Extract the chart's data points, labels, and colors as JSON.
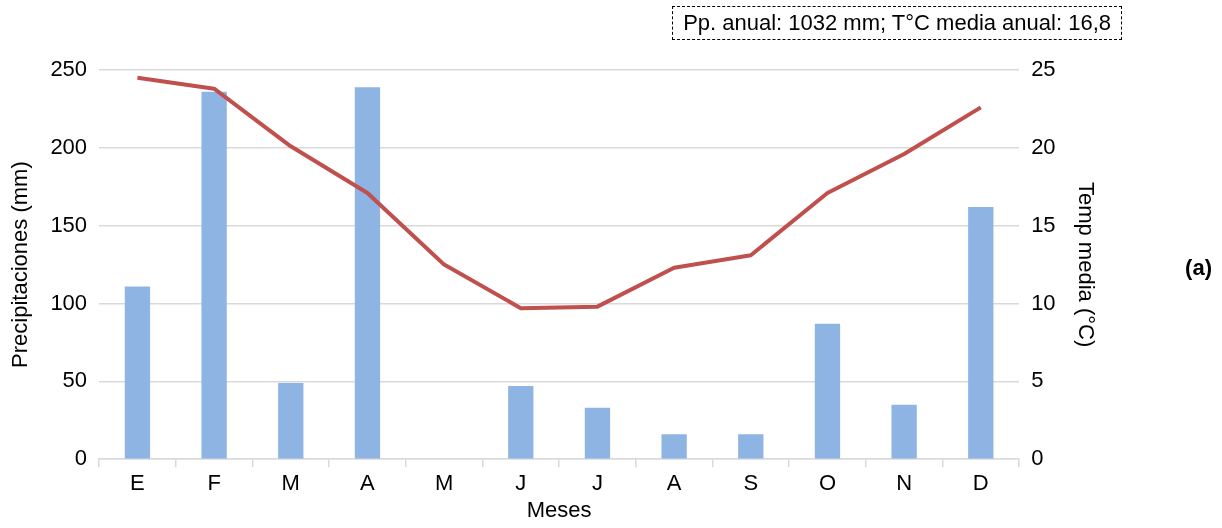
{
  "chart_data": {
    "type": "bar",
    "categories": [
      "E",
      "F",
      "M",
      "A",
      "M",
      "J",
      "J",
      "A",
      "S",
      "O",
      "N",
      "D"
    ],
    "series": [
      {
        "color": "#8eb4e3",
        "values": [
          111,
          236,
          49,
          239,
          0,
          47,
          33,
          16,
          16,
          87,
          35,
          162
        ]
      },
      {
        "type": "line",
        "axis": "y2",
        "color": "#c0504d",
        "values": [
          24.5,
          23.8,
          20.1,
          17.1,
          12.5,
          9.7,
          9.8,
          12.3,
          13.1,
          17.1,
          19.6,
          22.6
        ]
      }
    ],
    "xlabel": "Meses",
    "ylabel": "Precipitaciones (mm)",
    "y2label": "Temp media (°C)",
    "ylim": [
      0,
      250
    ],
    "yticks": [
      0,
      50,
      100,
      150,
      200,
      250
    ],
    "y2lim": [
      0,
      25
    ],
    "y2ticks": [
      0,
      5,
      10,
      15,
      20,
      25
    ],
    "grid": "y",
    "marker": "none",
    "line_style": "solid",
    "annotations": [
      "Pp. anual: 1032 mm; T°C media anual: 16,8",
      "(a)"
    ]
  }
}
